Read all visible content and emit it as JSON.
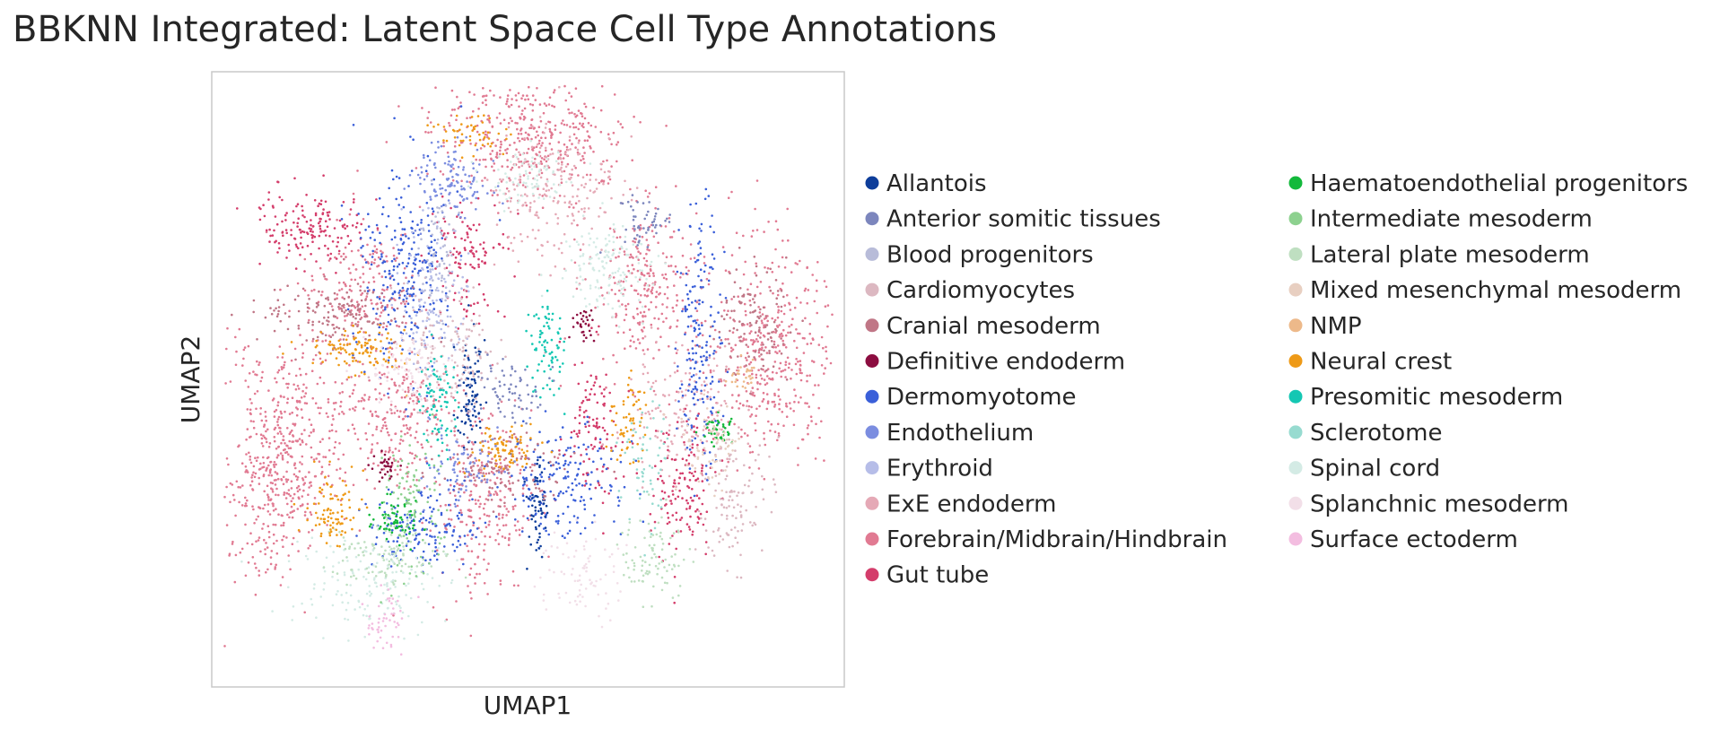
{
  "chart_data": {
    "type": "scatter",
    "title": "BBKNN Integrated: Latent Space Cell Type Annotations",
    "xlabel": "UMAP1",
    "ylabel": "UMAP2",
    "xticks": [],
    "yticks": [],
    "grid": false,
    "legend_placement": "right, two columns",
    "series": [
      {
        "name": "Allantois",
        "color": "#0d3d9a"
      },
      {
        "name": "Anterior somitic tissues",
        "color": "#7c86bd"
      },
      {
        "name": "Blood progenitors",
        "color": "#b8bcd9"
      },
      {
        "name": "Cardiomyocytes",
        "color": "#dcb8c1"
      },
      {
        "name": "Cranial mesoderm",
        "color": "#c07686"
      },
      {
        "name": "Definitive endoderm",
        "color": "#8c0d40"
      },
      {
        "name": "Dermomyotome",
        "color": "#3a5fd9"
      },
      {
        "name": "Endothelium",
        "color": "#7b8de0"
      },
      {
        "name": "Erythroid",
        "color": "#b6bde8"
      },
      {
        "name": "ExE endoderm",
        "color": "#e5a9b6"
      },
      {
        "name": "Forebrain/Midbrain/Hindbrain",
        "color": "#e17a92"
      },
      {
        "name": "Gut tube",
        "color": "#d43d6b"
      },
      {
        "name": "Haematoendothelial progenitors",
        "color": "#13b93b"
      },
      {
        "name": "Intermediate mesoderm",
        "color": "#8dd18f"
      },
      {
        "name": "Lateral plate mesoderm",
        "color": "#bfdfc1"
      },
      {
        "name": "Mixed mesenchymal mesoderm",
        "color": "#e8cfc1"
      },
      {
        "name": "NMP",
        "color": "#edb98a"
      },
      {
        "name": "Neural crest",
        "color": "#ee9a17"
      },
      {
        "name": "Presomitic mesoderm",
        "color": "#14c7b3"
      },
      {
        "name": "Sclerotome",
        "color": "#97dbd0"
      },
      {
        "name": "Spinal cord",
        "color": "#d4ebe5"
      },
      {
        "name": "Splanchnic mesoderm",
        "color": "#f2dfe8"
      },
      {
        "name": "Surface ectoderm",
        "color": "#f3bde0"
      }
    ]
  }
}
